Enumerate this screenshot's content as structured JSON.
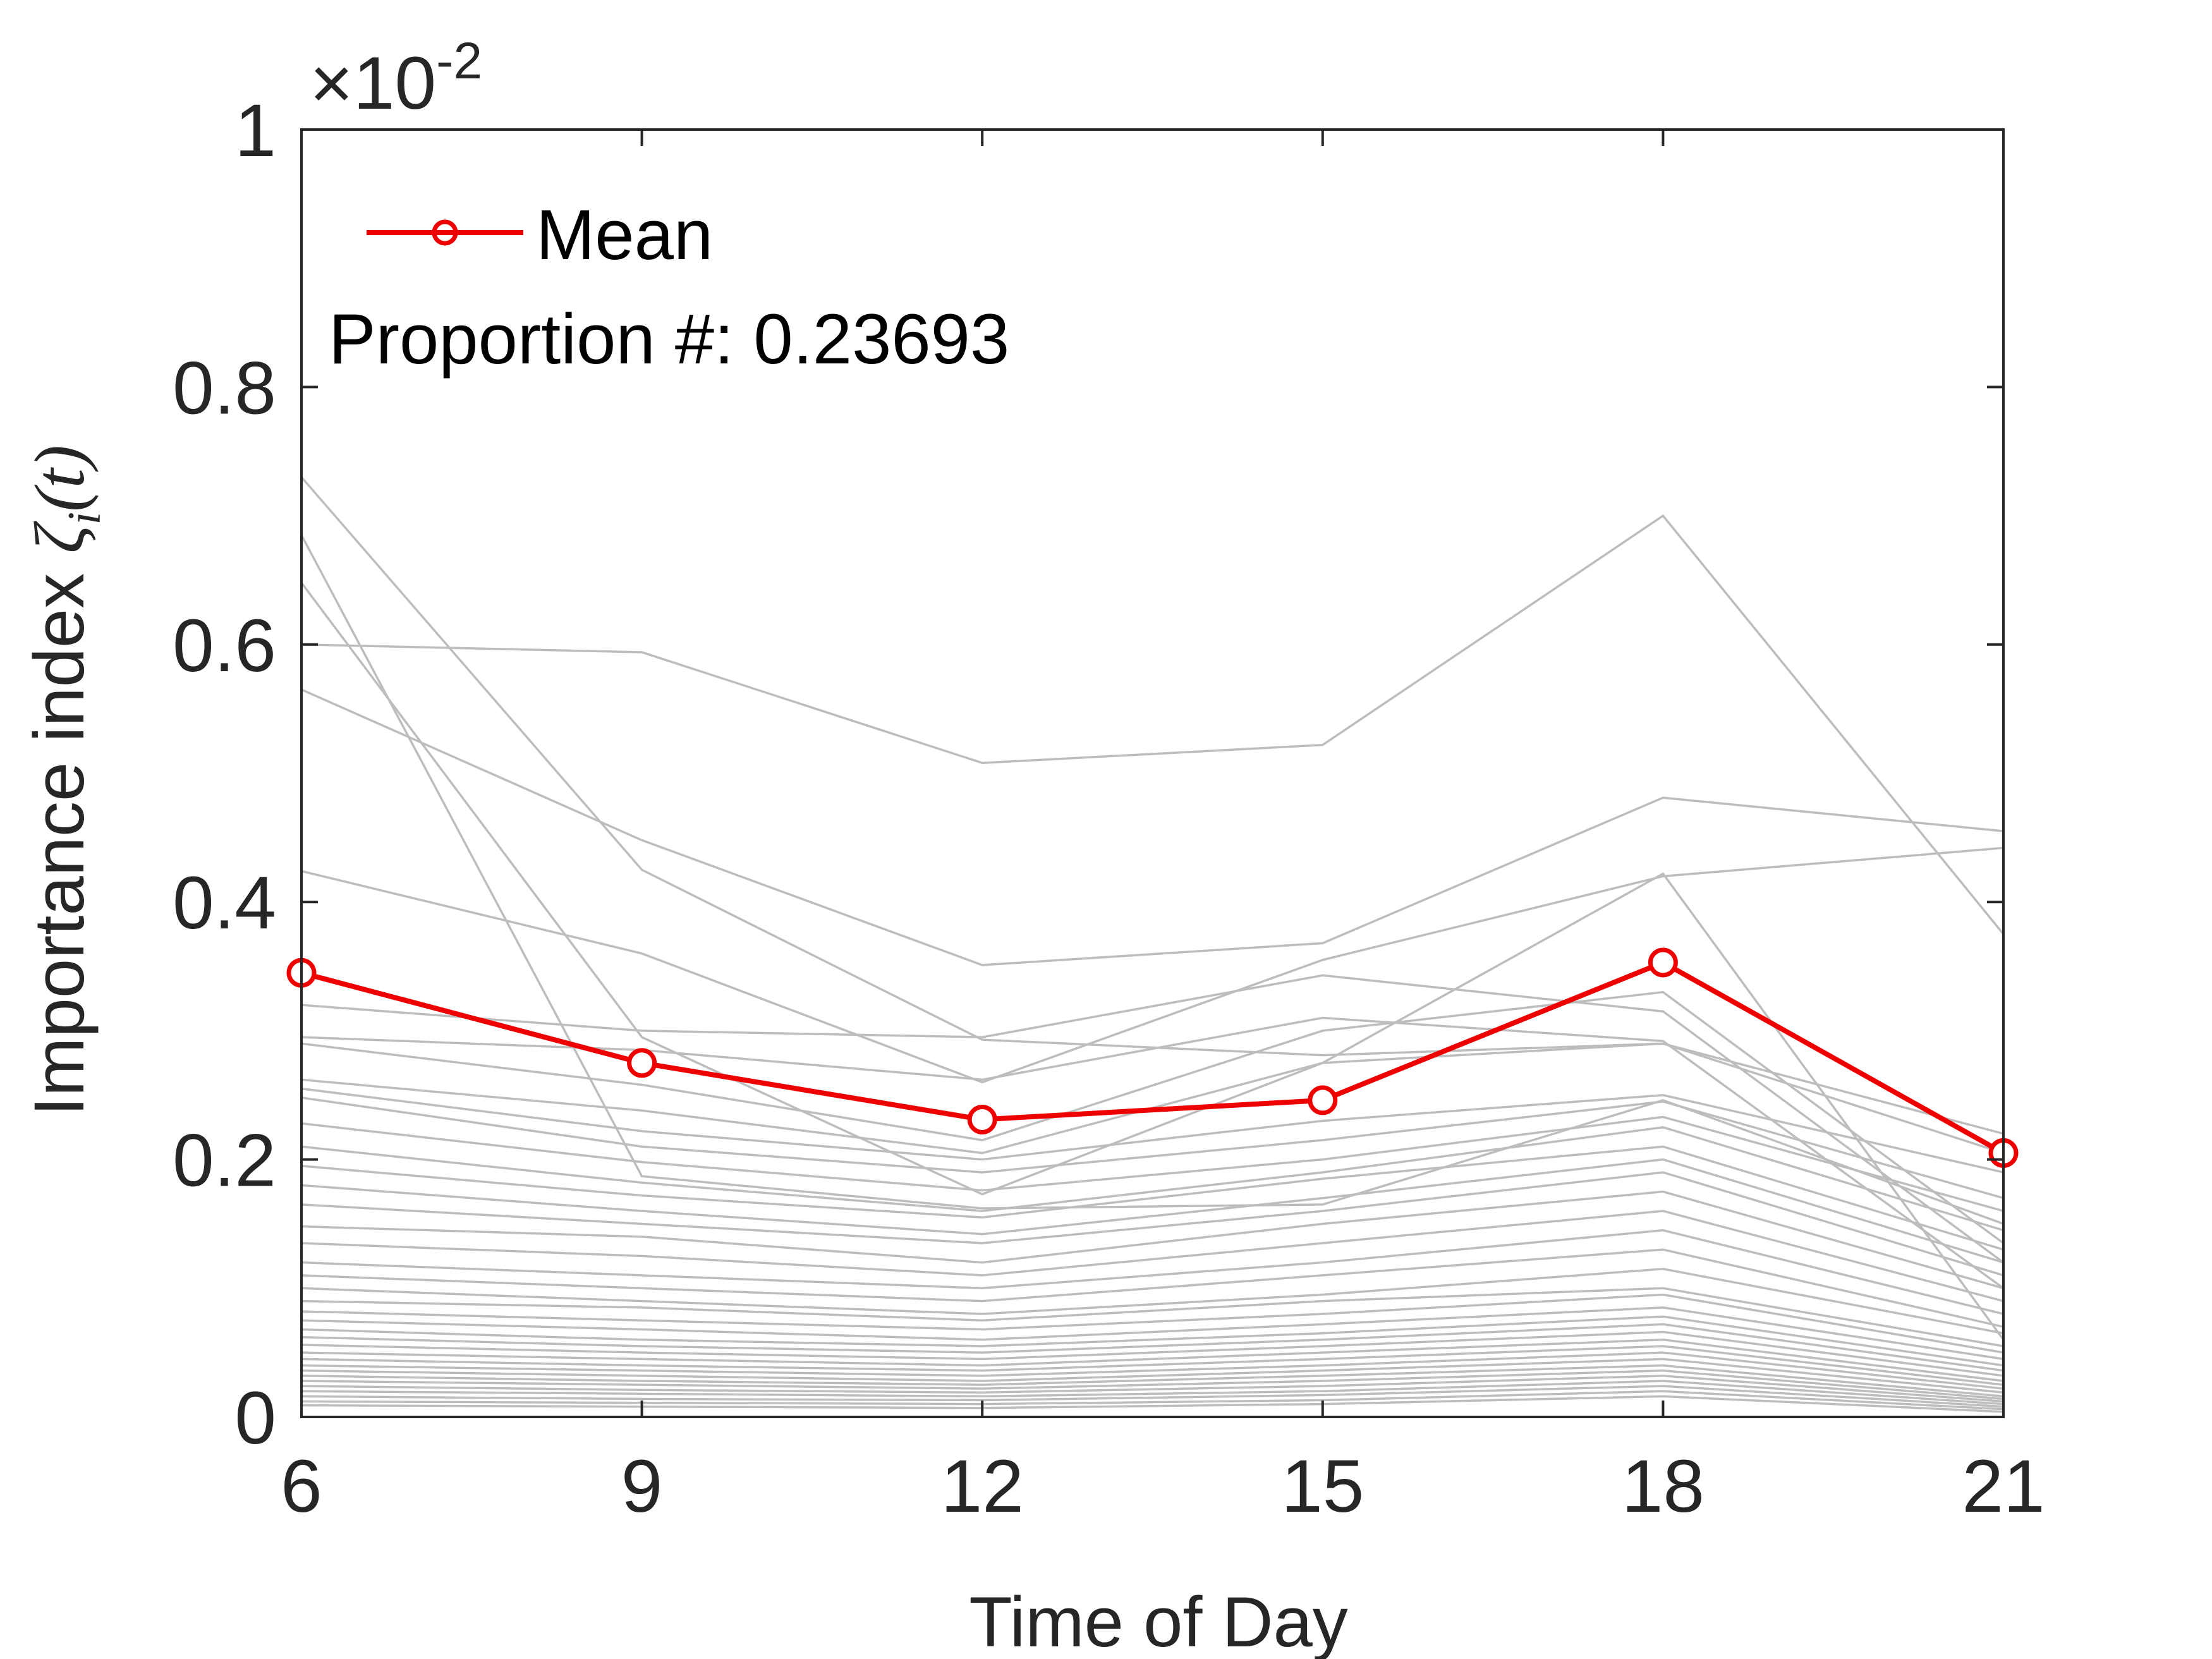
{
  "chart_data": {
    "type": "line",
    "xlabel": "Time of Day",
    "ylabel": "Importance index",
    "ylabel_symbol": "ζ",
    "ylabel_sub": "i",
    "ylabel_arg": "(t)",
    "exponent_prefix": "×10",
    "exponent_power": "-2",
    "x": [
      6,
      9,
      12,
      15,
      18,
      21
    ],
    "x_tick_labels": [
      "6",
      "9",
      "12",
      "15",
      "18",
      "21"
    ],
    "y_tick_labels": [
      "0",
      "0.2",
      "0.4",
      "0.6",
      "0.8",
      "1"
    ],
    "y_ticks": [
      0,
      0.2,
      0.4,
      0.6,
      0.8,
      1.0
    ],
    "xlim": [
      6,
      21
    ],
    "ylim": [
      0,
      1.0
    ],
    "y_scale_note": "values in units of 10^-2",
    "legend": {
      "label": "Mean",
      "placement": "top-left"
    },
    "annotation": "Proportion #: 0.23693",
    "colors": {
      "mean": "#ee0000",
      "individual": "#bdbdbd",
      "axes": "#262626"
    },
    "mean_series": {
      "name": "Mean",
      "values": [
        0.345,
        0.275,
        0.231,
        0.246,
        0.353,
        0.205
      ]
    },
    "individual_series": [
      [
        0.73,
        0.425,
        0.293,
        0.281,
        0.29,
        0.205
      ],
      [
        0.685,
        0.187,
        0.162,
        0.165,
        0.246,
        0.15
      ],
      [
        0.648,
        0.295,
        0.173,
        0.275,
        0.422,
        0.06
      ],
      [
        0.6,
        0.594,
        0.508,
        0.522,
        0.7,
        0.375
      ],
      [
        0.565,
        0.448,
        0.351,
        0.368,
        0.481,
        0.455
      ],
      [
        0.424,
        0.36,
        0.26,
        0.355,
        0.42,
        0.442
      ],
      [
        0.32,
        0.3,
        0.295,
        0.343,
        0.315,
        0.12
      ],
      [
        0.295,
        0.285,
        0.262,
        0.31,
        0.292,
        0.1
      ],
      [
        0.29,
        0.258,
        0.215,
        0.3,
        0.33,
        0.135
      ],
      [
        0.262,
        0.238,
        0.205,
        0.275,
        0.29,
        0.22
      ],
      [
        0.255,
        0.222,
        0.2,
        0.23,
        0.25,
        0.19
      ],
      [
        0.248,
        0.21,
        0.19,
        0.215,
        0.245,
        0.17
      ],
      [
        0.228,
        0.198,
        0.176,
        0.2,
        0.233,
        0.16
      ],
      [
        0.21,
        0.182,
        0.16,
        0.19,
        0.225,
        0.145
      ],
      [
        0.195,
        0.172,
        0.155,
        0.185,
        0.21,
        0.13
      ],
      [
        0.18,
        0.16,
        0.142,
        0.17,
        0.2,
        0.12
      ],
      [
        0.165,
        0.15,
        0.135,
        0.16,
        0.19,
        0.11
      ],
      [
        0.148,
        0.14,
        0.12,
        0.15,
        0.175,
        0.1
      ],
      [
        0.135,
        0.125,
        0.11,
        0.135,
        0.16,
        0.09
      ],
      [
        0.12,
        0.11,
        0.1,
        0.12,
        0.145,
        0.08
      ],
      [
        0.11,
        0.1,
        0.09,
        0.11,
        0.13,
        0.07
      ],
      [
        0.1,
        0.09,
        0.08,
        0.095,
        0.115,
        0.065
      ],
      [
        0.09,
        0.085,
        0.075,
        0.09,
        0.1,
        0.055
      ],
      [
        0.082,
        0.075,
        0.068,
        0.08,
        0.095,
        0.05
      ],
      [
        0.075,
        0.068,
        0.06,
        0.072,
        0.085,
        0.045
      ],
      [
        0.068,
        0.06,
        0.055,
        0.065,
        0.078,
        0.04
      ],
      [
        0.062,
        0.055,
        0.05,
        0.06,
        0.072,
        0.036
      ],
      [
        0.056,
        0.05,
        0.045,
        0.055,
        0.066,
        0.032
      ],
      [
        0.05,
        0.045,
        0.04,
        0.05,
        0.06,
        0.028
      ],
      [
        0.045,
        0.04,
        0.036,
        0.045,
        0.055,
        0.025
      ],
      [
        0.04,
        0.036,
        0.032,
        0.04,
        0.05,
        0.022
      ],
      [
        0.036,
        0.032,
        0.028,
        0.036,
        0.045,
        0.019
      ],
      [
        0.032,
        0.028,
        0.025,
        0.032,
        0.04,
        0.016
      ],
      [
        0.028,
        0.025,
        0.022,
        0.028,
        0.036,
        0.014
      ],
      [
        0.024,
        0.021,
        0.019,
        0.024,
        0.032,
        0.012
      ],
      [
        0.02,
        0.018,
        0.016,
        0.02,
        0.028,
        0.01
      ],
      [
        0.016,
        0.014,
        0.013,
        0.017,
        0.024,
        0.008
      ],
      [
        0.012,
        0.011,
        0.01,
        0.013,
        0.02,
        0.006
      ],
      [
        0.009,
        0.008,
        0.007,
        0.01,
        0.016,
        0.004
      ]
    ]
  }
}
